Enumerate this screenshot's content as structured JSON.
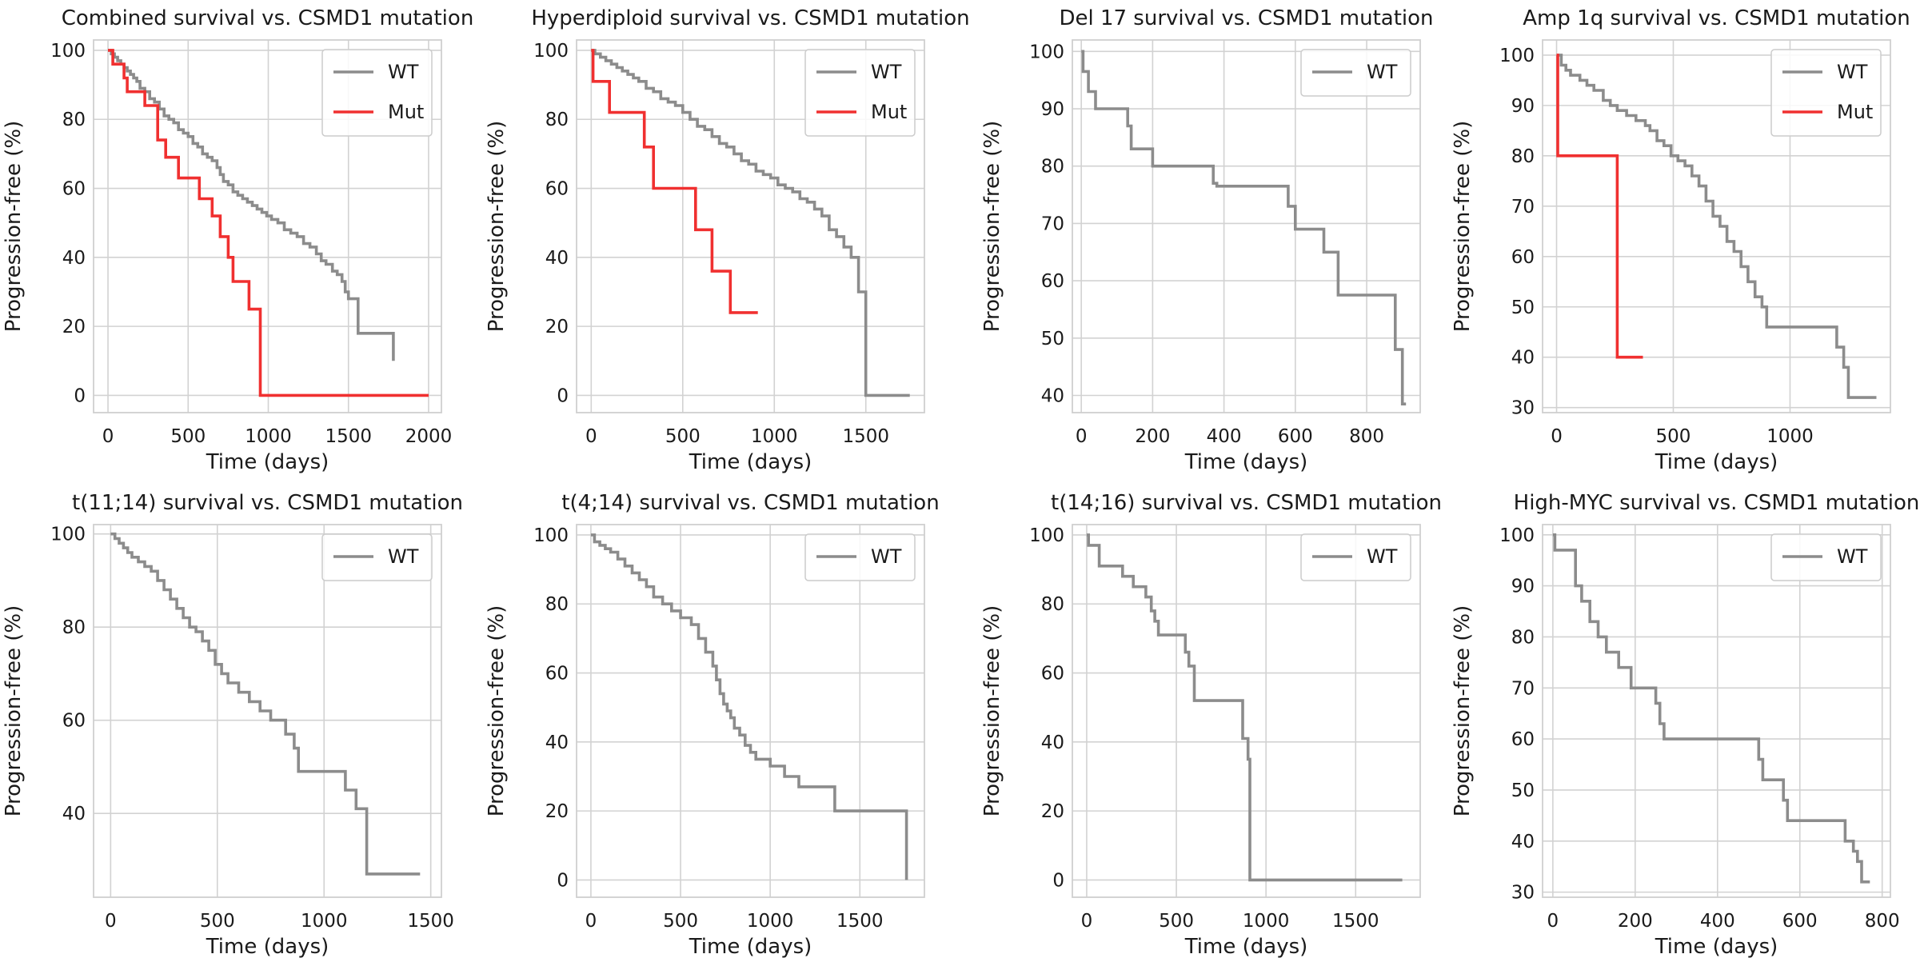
{
  "colors": {
    "WT": "#8c8c8c",
    "Mut": "#f03030"
  },
  "chart_data": [
    {
      "type": "line",
      "title": "Combined survival vs. CSMD1 mutation",
      "xlabel": "Time (days)",
      "ylabel": "Progression-free (%)",
      "xlim": [
        -90,
        2080
      ],
      "ylim": [
        -5,
        103
      ],
      "xticks": [
        "0",
        "500",
        "1000",
        "1500",
        "2000"
      ],
      "yticks": [
        "0",
        "20",
        "40",
        "60",
        "80",
        "100"
      ],
      "legend": [
        "WT",
        "Mut"
      ],
      "series": [
        {
          "name": "WT",
          "x": [
            0,
            20,
            40,
            60,
            80,
            100,
            120,
            140,
            160,
            180,
            200,
            230,
            260,
            290,
            320,
            350,
            380,
            410,
            440,
            470,
            500,
            530,
            560,
            590,
            620,
            650,
            680,
            700,
            720,
            750,
            780,
            810,
            840,
            870,
            900,
            930,
            960,
            990,
            1020,
            1060,
            1100,
            1140,
            1180,
            1220,
            1260,
            1300,
            1330,
            1360,
            1400,
            1430,
            1460,
            1480,
            1500,
            1510,
            1560,
            1760,
            1780
          ],
          "y": [
            100,
            99,
            98,
            97,
            96,
            95,
            94,
            93,
            92,
            91,
            89,
            88,
            86,
            85,
            83,
            81,
            80,
            79,
            77,
            76,
            75,
            73,
            72,
            70,
            69,
            68,
            66,
            64,
            62,
            61,
            59,
            58,
            57,
            56,
            55,
            54,
            53,
            52,
            51,
            50,
            48,
            47,
            46,
            44,
            43,
            41,
            39,
            38,
            36,
            35,
            33,
            30,
            28,
            28,
            18,
            18,
            10
          ]
        },
        {
          "name": "Mut",
          "x": [
            0,
            30,
            100,
            120,
            230,
            310,
            360,
            440,
            570,
            650,
            700,
            750,
            780,
            880,
            950,
            2000
          ],
          "y": [
            100,
            96,
            92,
            88,
            84,
            74,
            69,
            63,
            57,
            52,
            46,
            40,
            33,
            25,
            0,
            0
          ]
        }
      ]
    },
    {
      "type": "line",
      "title": "Hyperdiploid survival vs. CSMD1 mutation",
      "xlabel": "Time (days)",
      "ylabel": "Progression-free (%)",
      "xlim": [
        -80,
        1820
      ],
      "ylim": [
        -5,
        103
      ],
      "xticks": [
        "0",
        "500",
        "1000",
        "1500"
      ],
      "yticks": [
        "0",
        "20",
        "40",
        "60",
        "80",
        "100"
      ],
      "legend": [
        "WT",
        "Mut"
      ],
      "series": [
        {
          "name": "WT",
          "x": [
            0,
            20,
            50,
            80,
            110,
            140,
            170,
            200,
            230,
            260,
            300,
            340,
            380,
            420,
            460,
            500,
            540,
            580,
            620,
            660,
            700,
            740,
            780,
            820,
            860,
            900,
            940,
            980,
            1020,
            1060,
            1100,
            1140,
            1180,
            1220,
            1260,
            1300,
            1340,
            1380,
            1420,
            1460,
            1500,
            1740
          ],
          "y": [
            100,
            99,
            98,
            97,
            96,
            95,
            94,
            93,
            92,
            91,
            89,
            88,
            86,
            85,
            84,
            82,
            80,
            78,
            77,
            75,
            73,
            72,
            70,
            68,
            67,
            65,
            64,
            63,
            61,
            60,
            59,
            57,
            56,
            54,
            52,
            48,
            46,
            43,
            40,
            30,
            0,
            0
          ]
        },
        {
          "name": "Mut",
          "x": [
            0,
            10,
            100,
            290,
            340,
            570,
            660,
            760,
            910
          ],
          "y": [
            100,
            91,
            82,
            72,
            60,
            48,
            36,
            24,
            24
          ]
        }
      ]
    },
    {
      "type": "line",
      "title": "Del 17 survival vs. CSMD1 mutation",
      "xlabel": "Time (days)",
      "ylabel": "Progression-free (%)",
      "xlim": [
        -25,
        950
      ],
      "ylim": [
        37,
        102
      ],
      "xticks": [
        "0",
        "200",
        "400",
        "600",
        "800"
      ],
      "yticks": [
        "40",
        "50",
        "60",
        "70",
        "80",
        "90",
        "100"
      ],
      "legend": [
        "WT"
      ],
      "series": [
        {
          "name": "WT",
          "x": [
            0,
            5,
            20,
            40,
            130,
            140,
            200,
            370,
            380,
            580,
            600,
            680,
            720,
            880,
            900,
            910
          ],
          "y": [
            100,
            96.5,
            93,
            90,
            87,
            83,
            80,
            77,
            76.5,
            73,
            69,
            65,
            57.5,
            48,
            38.5,
            38.5
          ]
        }
      ]
    },
    {
      "type": "line",
      "title": "Amp 1q survival vs. CSMD1 mutation",
      "xlabel": "Time (days)",
      "ylabel": "Progression-free (%)",
      "xlim": [
        -60,
        1430
      ],
      "ylim": [
        29,
        103
      ],
      "xticks": [
        "0",
        "500",
        "1000"
      ],
      "yticks": [
        "30",
        "40",
        "50",
        "60",
        "70",
        "80",
        "90",
        "100"
      ],
      "legend": [
        "WT",
        "Mut"
      ],
      "series": [
        {
          "name": "WT",
          "x": [
            0,
            20,
            40,
            60,
            100,
            130,
            160,
            200,
            230,
            260,
            300,
            340,
            380,
            400,
            430,
            460,
            490,
            520,
            550,
            580,
            610,
            640,
            670,
            700,
            730,
            760,
            790,
            820,
            850,
            880,
            900,
            940,
            1200,
            1230,
            1250,
            1370
          ],
          "y": [
            100,
            98,
            97,
            96,
            95,
            94,
            93,
            91,
            90,
            89,
            88,
            87,
            86,
            85,
            83,
            82,
            80,
            79,
            78,
            76,
            74,
            71,
            68,
            66,
            63,
            61,
            58,
            55,
            52,
            50,
            46,
            46,
            42,
            38,
            32,
            32
          ]
        },
        {
          "name": "Mut",
          "x": [
            0,
            5,
            260,
            370
          ],
          "y": [
            100,
            80,
            40,
            40
          ]
        }
      ]
    },
    {
      "type": "line",
      "title": "t(11;14) survival vs. CSMD1 mutation",
      "xlabel": "Time (days)",
      "ylabel": "Progression-free (%)",
      "xlim": [
        -80,
        1550
      ],
      "ylim": [
        22,
        102
      ],
      "xticks": [
        "0",
        "500",
        "1000",
        "1500"
      ],
      "yticks": [
        "40",
        "60",
        "80",
        "100"
      ],
      "legend": [
        "WT"
      ],
      "series": [
        {
          "name": "WT",
          "x": [
            0,
            20,
            40,
            60,
            80,
            100,
            130,
            160,
            190,
            220,
            250,
            280,
            310,
            340,
            370,
            400,
            430,
            460,
            490,
            520,
            550,
            600,
            650,
            700,
            750,
            820,
            860,
            880,
            1050,
            1100,
            1150,
            1200,
            1450
          ],
          "y": [
            100,
            99,
            98,
            97,
            96,
            95,
            94,
            93,
            92,
            90,
            88,
            86,
            84,
            82,
            80,
            79,
            77,
            75,
            72,
            70,
            68,
            66,
            64,
            62,
            60,
            57,
            54,
            49,
            49,
            45,
            41,
            27,
            27
          ]
        }
      ]
    },
    {
      "type": "line",
      "title": "t(4;14) survival vs. CSMD1 mutation",
      "xlabel": "Time (days)",
      "ylabel": "Progression-free (%)",
      "xlim": [
        -80,
        1860
      ],
      "ylim": [
        -5,
        103
      ],
      "xticks": [
        "0",
        "500",
        "1000",
        "1500"
      ],
      "yticks": [
        "0",
        "20",
        "40",
        "60",
        "80",
        "100"
      ],
      "legend": [
        "WT"
      ],
      "series": [
        {
          "name": "WT",
          "x": [
            0,
            20,
            50,
            80,
            110,
            150,
            190,
            230,
            270,
            310,
            350,
            400,
            450,
            500,
            560,
            600,
            640,
            680,
            700,
            720,
            740,
            760,
            780,
            800,
            830,
            860,
            890,
            920,
            1000,
            1080,
            1160,
            1360,
            1760
          ],
          "y": [
            100,
            98,
            97,
            96,
            95,
            93,
            91,
            89,
            87,
            85,
            82,
            80,
            78,
            76,
            74,
            70,
            66,
            62,
            58,
            54,
            51,
            49,
            47,
            44,
            42,
            39,
            37,
            35,
            33,
            30,
            27,
            20,
            0
          ]
        }
      ]
    },
    {
      "type": "line",
      "title": "t(14;16) survival vs. CSMD1 mutation",
      "xlabel": "Time (days)",
      "ylabel": "Progression-free (%)",
      "xlim": [
        -80,
        1860
      ],
      "ylim": [
        -5,
        103
      ],
      "xticks": [
        "0",
        "500",
        "1000",
        "1500"
      ],
      "yticks": [
        "0",
        "20",
        "40",
        "60",
        "80",
        "100"
      ],
      "legend": [
        "WT"
      ],
      "series": [
        {
          "name": "WT",
          "x": [
            0,
            10,
            70,
            200,
            260,
            330,
            360,
            380,
            400,
            520,
            550,
            570,
            600,
            840,
            870,
            900,
            910,
            1760
          ],
          "y": [
            100,
            97,
            91,
            88,
            85,
            82,
            78,
            75,
            71,
            71,
            66,
            62,
            52,
            52,
            41,
            35,
            0,
            0
          ]
        }
      ]
    },
    {
      "type": "line",
      "title": "High-MYC survival vs. CSMD1 mutation",
      "xlabel": "Time (days)",
      "ylabel": "Progression-free (%)",
      "xlim": [
        -25,
        820
      ],
      "ylim": [
        29,
        102
      ],
      "xticks": [
        "0",
        "200",
        "400",
        "600",
        "800"
      ],
      "yticks": [
        "30",
        "40",
        "50",
        "60",
        "70",
        "80",
        "90",
        "100"
      ],
      "legend": [
        "WT"
      ],
      "series": [
        {
          "name": "WT",
          "x": [
            0,
            5,
            55,
            70,
            90,
            110,
            130,
            160,
            190,
            250,
            260,
            270,
            480,
            500,
            510,
            560,
            570,
            710,
            730,
            740,
            750,
            770
          ],
          "y": [
            100,
            97,
            90,
            87,
            83,
            80,
            77,
            74,
            70,
            67,
            63,
            60,
            60,
            56,
            52,
            48,
            44,
            40,
            38,
            36,
            32,
            32
          ]
        }
      ]
    }
  ]
}
